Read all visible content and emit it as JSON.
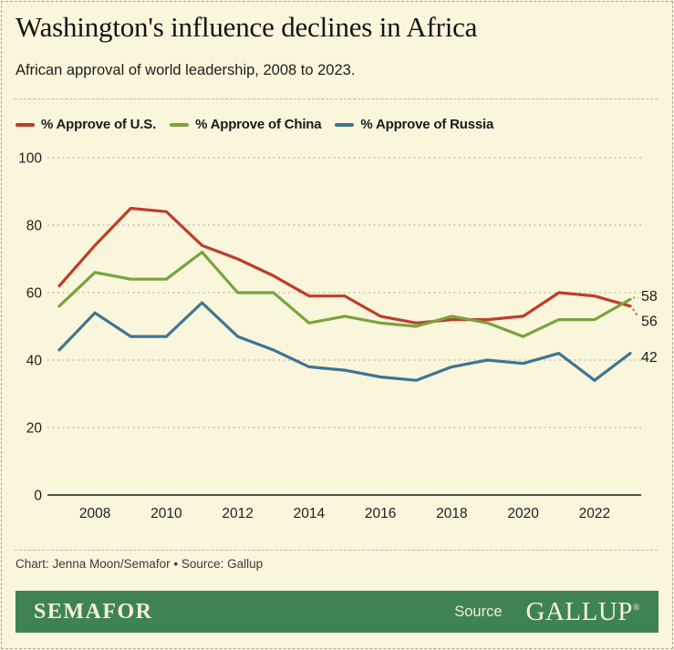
{
  "header": {
    "title": "Washington's influence declines in Africa",
    "subtitle": "African approval of world leadership, 2008 to 2023."
  },
  "legend": {
    "items": [
      {
        "label": "% Approve of U.S.",
        "color": "#c23b2b"
      },
      {
        "label": "% Approve of China",
        "color": "#79a33e"
      },
      {
        "label": "% Approve of Russia",
        "color": "#3e7593"
      }
    ]
  },
  "chart_data": {
    "type": "line",
    "title": "Washington's influence declines in Africa",
    "subtitle": "African approval of world leadership, 2008 to 2023.",
    "x": [
      2007,
      2008,
      2009,
      2010,
      2011,
      2012,
      2013,
      2014,
      2015,
      2016,
      2017,
      2018,
      2019,
      2020,
      2021,
      2022,
      2023
    ],
    "series": [
      {
        "name": "% Approve of U.S.",
        "color": "#c23b2b",
        "values": [
          62,
          74,
          85,
          84,
          74,
          70,
          65,
          59,
          59,
          53,
          51,
          52,
          52,
          53,
          60,
          59,
          56
        ]
      },
      {
        "name": "% Approve of China",
        "color": "#79a33e",
        "values": [
          56,
          66,
          64,
          64,
          72,
          60,
          60,
          51,
          53,
          51,
          50,
          53,
          51,
          47,
          52,
          52,
          58
        ]
      },
      {
        "name": "% Approve of Russia",
        "color": "#3e7593",
        "values": [
          43,
          54,
          47,
          47,
          57,
          47,
          43,
          38,
          37,
          35,
          34,
          38,
          40,
          39,
          42,
          34,
          42
        ]
      }
    ],
    "ylim": [
      0,
      100
    ],
    "y_ticks": [
      0,
      20,
      40,
      60,
      80,
      100
    ],
    "x_tick_labels": [
      "2008",
      "2010",
      "2012",
      "2014",
      "2016",
      "2018",
      "2020",
      "2022"
    ],
    "grid": "horizontal-dashed",
    "legend_position": "top",
    "end_labels": [
      {
        "series_index": 1,
        "text": "58",
        "dy": -4,
        "leader": true
      },
      {
        "series_index": 0,
        "text": "56",
        "dy": 16,
        "leader": true
      },
      {
        "series_index": 2,
        "text": "42",
        "dy": 4,
        "leader": false
      }
    ]
  },
  "footer": {
    "credit": "Chart: Jenna Moon/Semafor • Source: Gallup",
    "brand": "SEMAFOR",
    "source_label": "Source",
    "source_brand": "GALLUP",
    "registered_mark": "®"
  },
  "colors": {
    "background": "#faf6dc",
    "bar_green": "#3f8355",
    "grid": "#b8b8aa",
    "axis_line": "#1a1a1a",
    "tick_text": "#1f1f1f"
  }
}
